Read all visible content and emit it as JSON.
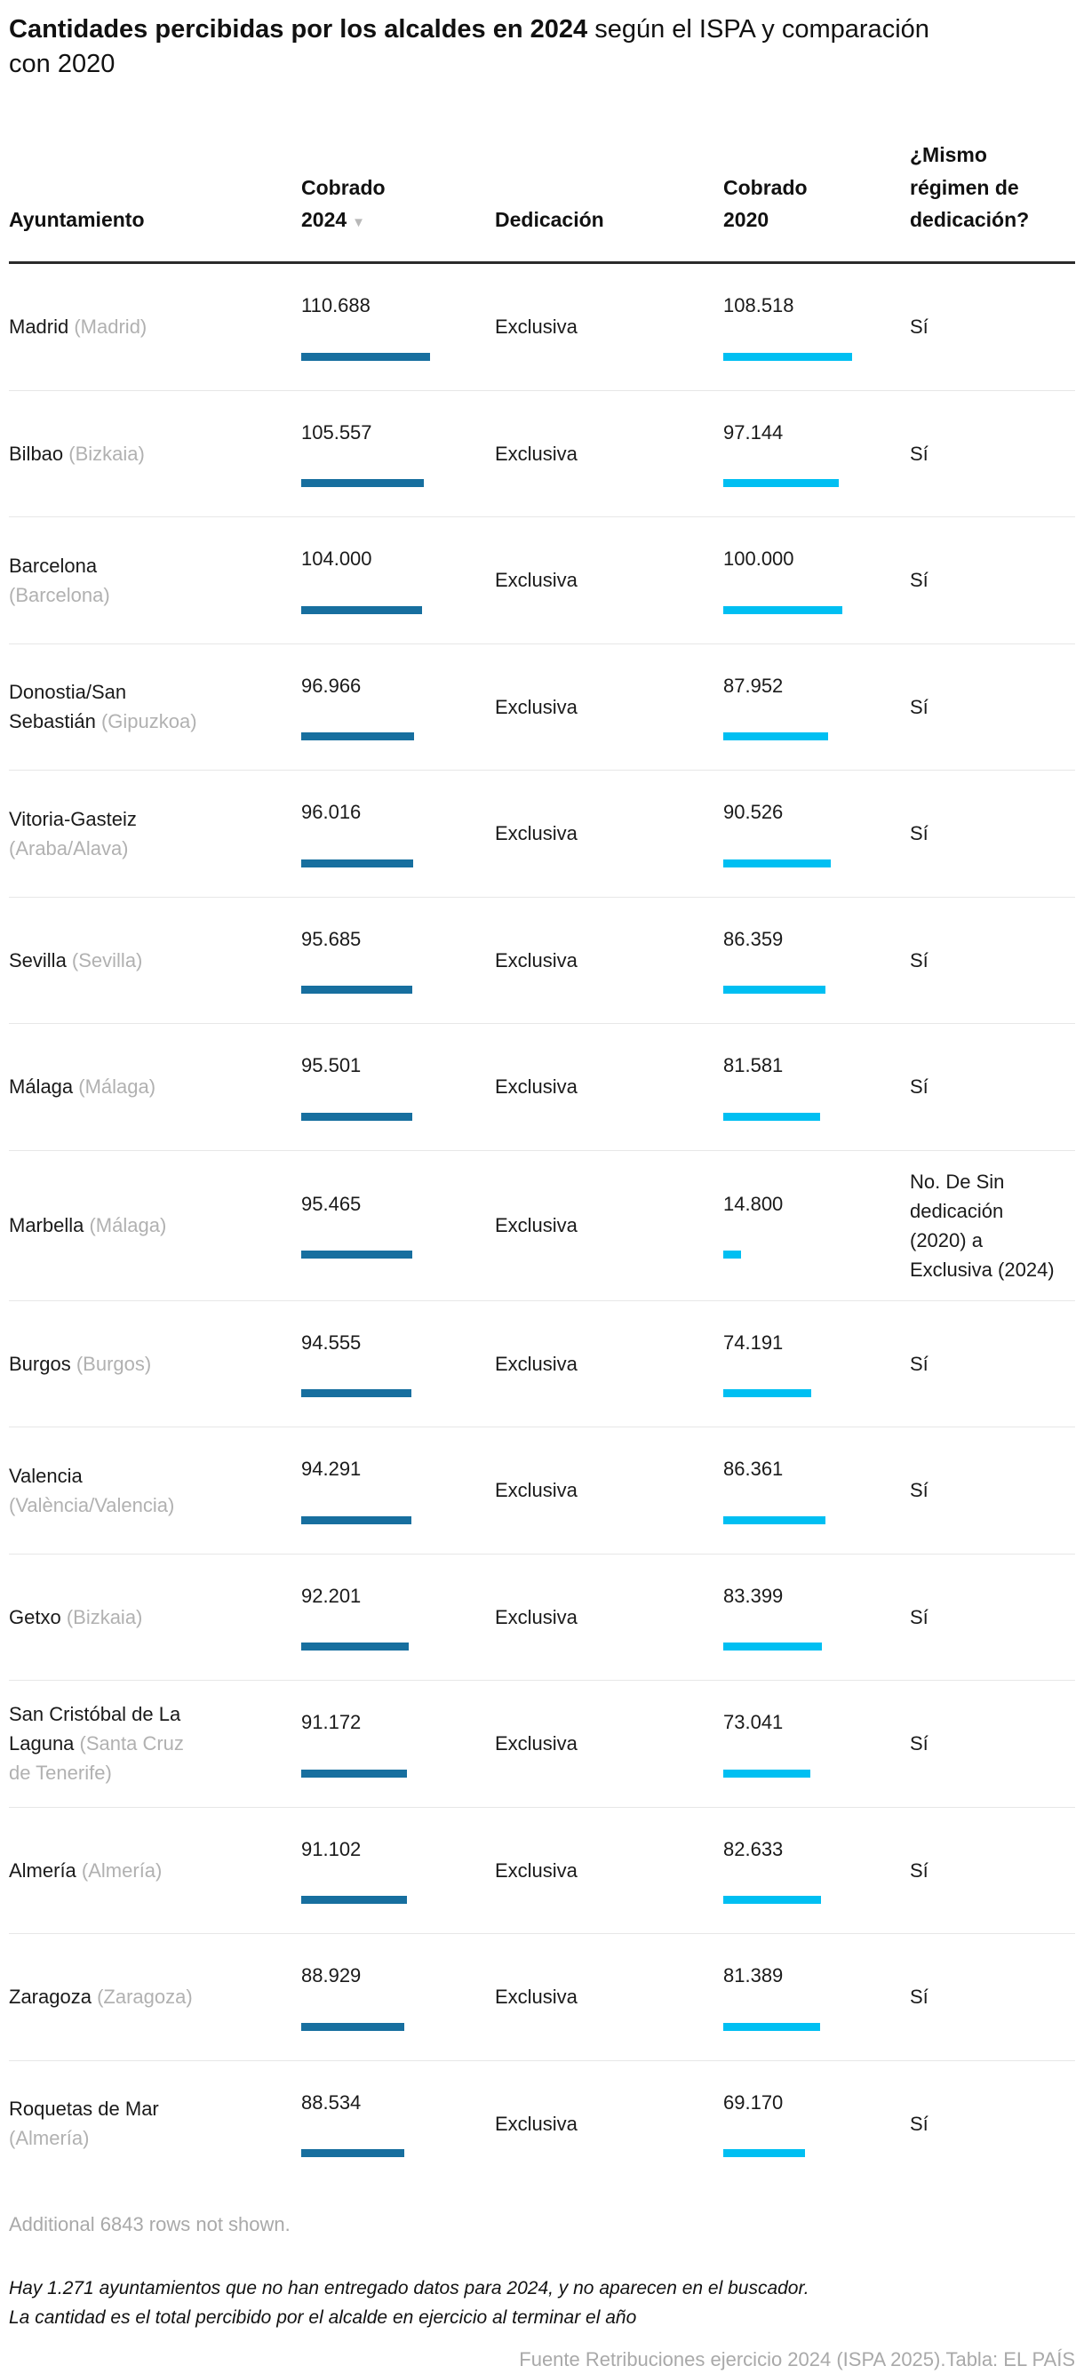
{
  "title": {
    "bold": "Cantidades percibidas por los alcaldes en 2024",
    "rest": " según el ISPA y comparación\ncon 2020"
  },
  "chart_data": {
    "type": "table",
    "columns": [
      {
        "key": "name",
        "label": "Ayuntamiento"
      },
      {
        "key": "v2024",
        "label": "Cobrado\n2024",
        "sorted": "desc",
        "sort_icon": "▼"
      },
      {
        "key": "dedicacion",
        "label": "Dedicación"
      },
      {
        "key": "v2020",
        "label": "Cobrado\n2020"
      },
      {
        "key": "same",
        "label": "¿Mismo\nrégimen de\ndedicación?"
      }
    ],
    "bar_colors": {
      "v2024": "#176f9f",
      "v2020": "#00bff2"
    },
    "max_values": {
      "v2024": 110688,
      "v2020": 108518
    },
    "rows": [
      {
        "name": "Madrid ",
        "province": "(Madrid)",
        "v2024_label": "110.688",
        "v2024": 110688,
        "dedicacion": "Exclusiva",
        "v2020_label": "108.518",
        "v2020": 108518,
        "same": "Sí"
      },
      {
        "name": "Bilbao ",
        "province": "(Bizkaia)",
        "v2024_label": "105.557",
        "v2024": 105557,
        "dedicacion": "Exclusiva",
        "v2020_label": "97.144",
        "v2020": 97144,
        "same": "Sí"
      },
      {
        "name": "Barcelona\n",
        "province": "(Barcelona)",
        "v2024_label": "104.000",
        "v2024": 104000,
        "dedicacion": "Exclusiva",
        "v2020_label": "100.000",
        "v2020": 100000,
        "same": "Sí"
      },
      {
        "name": "Donostia/San\nSebastián ",
        "province": "(Gipuzkoa)",
        "v2024_label": "96.966",
        "v2024": 96966,
        "dedicacion": "Exclusiva",
        "v2020_label": "87.952",
        "v2020": 87952,
        "same": "Sí"
      },
      {
        "name": "Vitoria-Gasteiz\n",
        "province": "(Araba/Alava)",
        "v2024_label": "96.016",
        "v2024": 96016,
        "dedicacion": "Exclusiva",
        "v2020_label": "90.526",
        "v2020": 90526,
        "same": "Sí"
      },
      {
        "name": "Sevilla ",
        "province": "(Sevilla)",
        "v2024_label": "95.685",
        "v2024": 95685,
        "dedicacion": "Exclusiva",
        "v2020_label": "86.359",
        "v2020": 86359,
        "same": "Sí"
      },
      {
        "name": "Málaga ",
        "province": "(Málaga)",
        "v2024_label": "95.501",
        "v2024": 95501,
        "dedicacion": "Exclusiva",
        "v2020_label": "81.581",
        "v2020": 81581,
        "same": "Sí"
      },
      {
        "name": "Marbella ",
        "province": "(Málaga)",
        "v2024_label": "95.465",
        "v2024": 95465,
        "dedicacion": "Exclusiva",
        "v2020_label": "14.800",
        "v2020": 14800,
        "same": "No. De Sin\ndedicación\n(2020) a\nExclusiva (2024)"
      },
      {
        "name": "Burgos ",
        "province": "(Burgos)",
        "v2024_label": "94.555",
        "v2024": 94555,
        "dedicacion": "Exclusiva",
        "v2020_label": "74.191",
        "v2020": 74191,
        "same": "Sí"
      },
      {
        "name": "Valencia\n",
        "province": "(València/Valencia)",
        "v2024_label": "94.291",
        "v2024": 94291,
        "dedicacion": "Exclusiva",
        "v2020_label": "86.361",
        "v2020": 86361,
        "same": "Sí"
      },
      {
        "name": "Getxo ",
        "province": "(Bizkaia)",
        "v2024_label": "92.201",
        "v2024": 92201,
        "dedicacion": "Exclusiva",
        "v2020_label": "83.399",
        "v2020": 83399,
        "same": "Sí"
      },
      {
        "name": "San Cristóbal de La\nLaguna ",
        "province": "(Santa Cruz\nde Tenerife)",
        "v2024_label": "91.172",
        "v2024": 91172,
        "dedicacion": "Exclusiva",
        "v2020_label": "73.041",
        "v2020": 73041,
        "same": "Sí"
      },
      {
        "name": "Almería ",
        "province": "(Almería)",
        "v2024_label": "91.102",
        "v2024": 91102,
        "dedicacion": "Exclusiva",
        "v2020_label": "82.633",
        "v2020": 82633,
        "same": "Sí"
      },
      {
        "name": "Zaragoza ",
        "province": "(Zaragoza)",
        "v2024_label": "88.929",
        "v2024": 88929,
        "dedicacion": "Exclusiva",
        "v2020_label": "81.389",
        "v2020": 81389,
        "same": "Sí"
      },
      {
        "name": "Roquetas de Mar\n",
        "province": "(Almería)",
        "v2024_label": "88.534",
        "v2024": 88534,
        "dedicacion": "Exclusiva",
        "v2020_label": "69.170",
        "v2020": 69170,
        "same": "Sí"
      }
    ]
  },
  "footer": {
    "note_rows": "Additional 6843 rows not shown.",
    "note1": "Hay 1.271 ayuntamientos que no han entregado datos para 2024, y no aparecen en el buscador.",
    "note2": "La cantidad es el total percibido por el alcalde en ejercicio al terminar el año",
    "source": "Fuente Retribuciones ejercicio 2024 (ISPA 2025).Tabla: EL PAÍS"
  }
}
